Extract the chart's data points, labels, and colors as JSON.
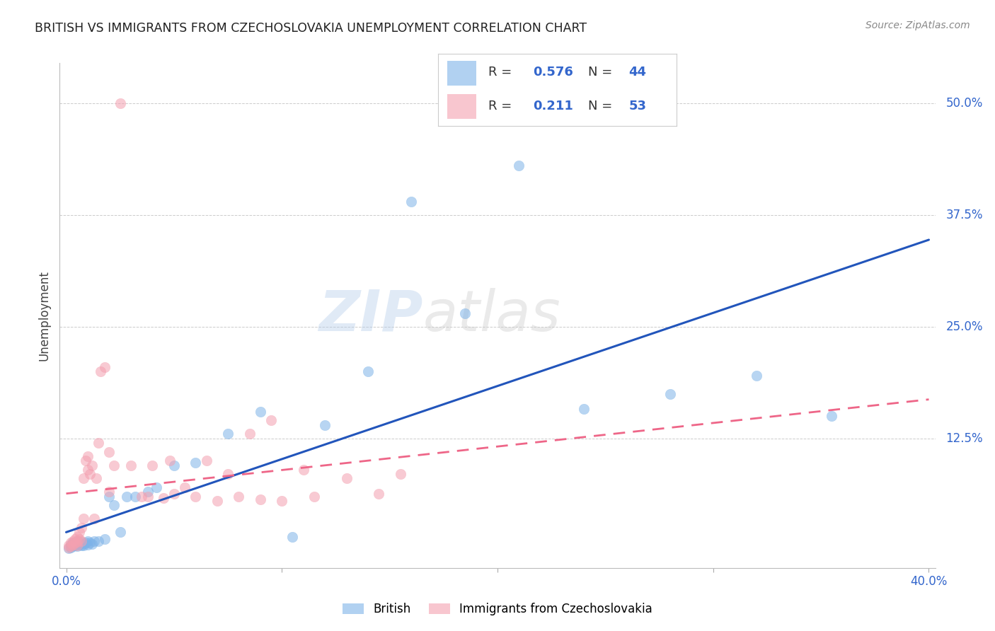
{
  "title": "BRITISH VS IMMIGRANTS FROM CZECHOSLOVAKIA UNEMPLOYMENT CORRELATION CHART",
  "source": "Source: ZipAtlas.com",
  "ylabel": "Unemployment",
  "ytick_labels": [
    "50.0%",
    "37.5%",
    "25.0%",
    "12.5%"
  ],
  "ytick_values": [
    0.5,
    0.375,
    0.25,
    0.125
  ],
  "xlim": [
    -0.003,
    0.403
  ],
  "ylim": [
    -0.02,
    0.545
  ],
  "legend_R_british": "0.576",
  "legend_N_british": "44",
  "legend_R_czech": "0.211",
  "legend_N_czech": "53",
  "british_color": "#7EB3E8",
  "czech_color": "#F4A0B0",
  "british_line_color": "#2255BB",
  "czech_line_color": "#EE6688",
  "background_color": "#ffffff",
  "watermark_zip": "ZIP",
  "watermark_atlas": "atlas",
  "british_x": [
    0.001,
    0.002,
    0.002,
    0.003,
    0.003,
    0.004,
    0.004,
    0.005,
    0.005,
    0.006,
    0.006,
    0.007,
    0.007,
    0.008,
    0.008,
    0.009,
    0.01,
    0.01,
    0.011,
    0.012,
    0.013,
    0.015,
    0.018,
    0.02,
    0.022,
    0.025,
    0.028,
    0.032,
    0.038,
    0.042,
    0.05,
    0.06,
    0.075,
    0.09,
    0.105,
    0.12,
    0.14,
    0.16,
    0.185,
    0.21,
    0.24,
    0.28,
    0.32,
    0.355
  ],
  "british_y": [
    0.002,
    0.003,
    0.006,
    0.004,
    0.008,
    0.005,
    0.007,
    0.004,
    0.01,
    0.006,
    0.008,
    0.005,
    0.009,
    0.007,
    0.005,
    0.008,
    0.006,
    0.01,
    0.008,
    0.007,
    0.01,
    0.01,
    0.012,
    0.06,
    0.05,
    0.02,
    0.06,
    0.06,
    0.065,
    0.07,
    0.095,
    0.098,
    0.13,
    0.155,
    0.015,
    0.14,
    0.2,
    0.39,
    0.265,
    0.43,
    0.158,
    0.175,
    0.195,
    0.15
  ],
  "czech_x": [
    0.001,
    0.001,
    0.002,
    0.002,
    0.003,
    0.003,
    0.004,
    0.004,
    0.005,
    0.005,
    0.005,
    0.006,
    0.006,
    0.007,
    0.007,
    0.008,
    0.008,
    0.009,
    0.01,
    0.01,
    0.011,
    0.012,
    0.013,
    0.014,
    0.015,
    0.016,
    0.018,
    0.02,
    0.022,
    0.025,
    0.03,
    0.035,
    0.04,
    0.048,
    0.055,
    0.065,
    0.075,
    0.085,
    0.095,
    0.11,
    0.13,
    0.155,
    0.02,
    0.038,
    0.045,
    0.05,
    0.06,
    0.07,
    0.08,
    0.09,
    0.1,
    0.115,
    0.145
  ],
  "czech_y": [
    0.003,
    0.005,
    0.004,
    0.008,
    0.006,
    0.01,
    0.008,
    0.012,
    0.005,
    0.009,
    0.015,
    0.012,
    0.02,
    0.01,
    0.025,
    0.035,
    0.08,
    0.1,
    0.09,
    0.105,
    0.085,
    0.095,
    0.035,
    0.08,
    0.12,
    0.2,
    0.205,
    0.11,
    0.095,
    0.5,
    0.095,
    0.06,
    0.095,
    0.1,
    0.07,
    0.1,
    0.085,
    0.13,
    0.145,
    0.09,
    0.08,
    0.085,
    0.065,
    0.06,
    0.058,
    0.063,
    0.06,
    0.055,
    0.06,
    0.057,
    0.055,
    0.06,
    0.063
  ]
}
